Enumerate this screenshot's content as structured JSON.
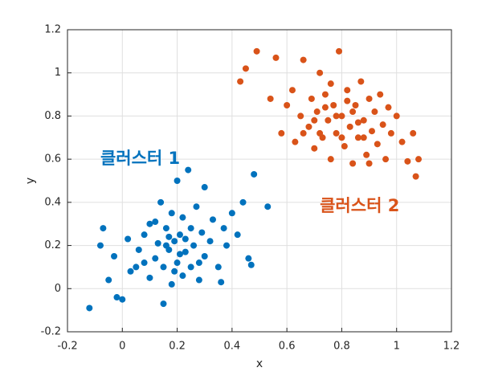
{
  "chart_data": {
    "type": "scatter",
    "xlabel": "x",
    "ylabel": "y",
    "xlim": [
      -0.2,
      1.2
    ],
    "ylim": [
      -0.2,
      1.2
    ],
    "xticks": [
      -0.2,
      0,
      0.2,
      0.4,
      0.6,
      0.8,
      1,
      1.2
    ],
    "yticks": [
      -0.2,
      0,
      0.2,
      0.4,
      0.6,
      0.8,
      1,
      1.2
    ],
    "grid": true,
    "series": [
      {
        "name": "클러스터 1",
        "color": "#0072BD",
        "x": [
          -0.12,
          -0.08,
          -0.07,
          -0.05,
          -0.03,
          -0.02,
          0,
          0.02,
          0.03,
          0.05,
          0.06,
          0.08,
          0.1,
          0.1,
          0.12,
          0.13,
          0.14,
          0.15,
          0.15,
          0.16,
          0.17,
          0.18,
          0.18,
          0.19,
          0.2,
          0.2,
          0.21,
          0.22,
          0.22,
          0.23,
          0.24,
          0.25,
          0.25,
          0.26,
          0.27,
          0.28,
          0.29,
          0.3,
          0.3,
          0.32,
          0.33,
          0.35,
          0.36,
          0.37,
          0.38,
          0.4,
          0.42,
          0.44,
          0.46,
          0.47,
          0.48,
          0.53,
          0.12,
          0.08,
          0.28,
          0.19,
          0.23,
          0.17,
          0.21,
          0.16
        ],
        "values": [
          -0.09,
          0.2,
          0.28,
          0.04,
          0.15,
          -0.04,
          -0.05,
          0.23,
          0.08,
          0.1,
          0.18,
          0.25,
          0.05,
          0.3,
          0.14,
          0.21,
          0.4,
          -0.07,
          0.1,
          0.28,
          0.18,
          0.02,
          0.35,
          0.22,
          0.12,
          0.5,
          0.25,
          0.06,
          0.33,
          0.17,
          0.55,
          0.28,
          0.1,
          0.2,
          0.38,
          0.04,
          0.26,
          0.15,
          0.47,
          0.22,
          0.32,
          0.1,
          0.03,
          0.28,
          0.2,
          0.35,
          0.25,
          0.4,
          0.14,
          0.11,
          0.53,
          0.38,
          0.31,
          0.12,
          0.12,
          0.08,
          0.23,
          0.24,
          0.16,
          0.2
        ]
      },
      {
        "name": "클러스터 2",
        "color": "#D95319",
        "x": [
          0.43,
          0.45,
          0.49,
          0.54,
          0.56,
          0.58,
          0.6,
          0.62,
          0.63,
          0.65,
          0.66,
          0.68,
          0.69,
          0.7,
          0.71,
          0.72,
          0.73,
          0.74,
          0.75,
          0.76,
          0.77,
          0.78,
          0.79,
          0.8,
          0.81,
          0.82,
          0.83,
          0.84,
          0.85,
          0.86,
          0.87,
          0.88,
          0.89,
          0.9,
          0.91,
          0.92,
          0.93,
          0.94,
          0.95,
          0.96,
          0.97,
          0.98,
          1.0,
          1.02,
          1.04,
          1.06,
          1.07,
          1.08,
          0.76,
          0.8,
          0.84,
          0.7,
          0.74,
          0.86,
          0.78,
          0.82,
          0.72,
          0.88,
          0.9,
          0.66
        ],
        "values": [
          0.96,
          1.02,
          1.1,
          0.88,
          1.07,
          0.72,
          0.85,
          0.92,
          0.68,
          0.8,
          1.06,
          0.75,
          0.88,
          0.65,
          0.82,
          1.0,
          0.7,
          0.9,
          0.78,
          0.6,
          0.85,
          0.72,
          1.1,
          0.8,
          0.66,
          0.92,
          0.75,
          0.58,
          0.85,
          0.7,
          0.96,
          0.78,
          0.62,
          0.88,
          0.73,
          0.82,
          0.67,
          0.9,
          0.76,
          0.6,
          0.84,
          0.72,
          0.8,
          0.68,
          0.59,
          0.72,
          0.52,
          0.6,
          0.95,
          0.7,
          0.82,
          0.78,
          0.84,
          0.77,
          0.8,
          0.87,
          0.72,
          0.7,
          0.58,
          0.72
        ]
      }
    ]
  }
}
